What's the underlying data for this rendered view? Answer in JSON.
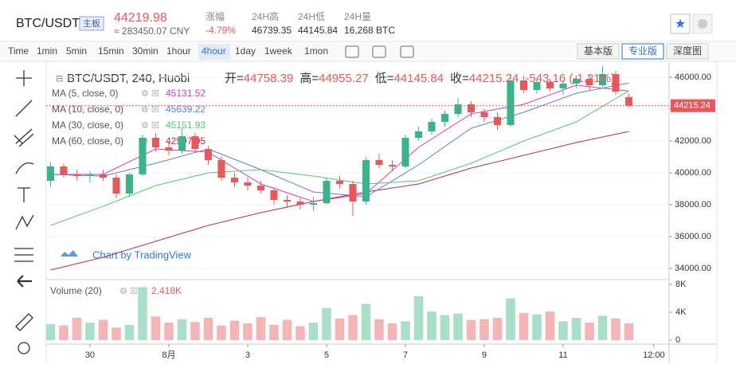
{
  "header": {
    "symbol": "BTC/USDT",
    "badge": "主板",
    "price": "44219.98",
    "cny": "≈ 283450.07 CNY",
    "stats": [
      {
        "label": "涨幅",
        "value": "-4.79%"
      },
      {
        "label": "24H高",
        "value": "46739.35"
      },
      {
        "label": "24H低",
        "value": "44145.84"
      },
      {
        "label": "24H量",
        "value": "16,268 BTC"
      }
    ]
  },
  "toolbar": {
    "intervals": [
      "Time",
      "1min",
      "5min",
      "15min",
      "30min",
      "1hour",
      "4hour",
      "1day",
      "1week",
      "1mon"
    ],
    "views": [
      "基本版",
      "专业版",
      "深度图"
    ]
  },
  "chart_data": [
    {
      "type": "candlestick",
      "title": "BTC/USDT, 240, Huobi",
      "ohlc_labels": [
        "开=",
        "高=",
        "低=",
        "收="
      ],
      "change": "-543.16 (-1.21%)",
      "watermark": "Chart by TradingView",
      "up_color": "#3bb38a",
      "down_color": "#e8575a",
      "candles": [
        [
          39500,
          40700,
          39100,
          40400
        ],
        [
          40400,
          40600,
          39700,
          39900
        ],
        [
          39900,
          40200,
          39500,
          39800
        ],
        [
          39800,
          40100,
          39400,
          39900
        ],
        [
          39900,
          40200,
          39500,
          39700
        ],
        [
          39700,
          39900,
          38400,
          38700
        ],
        [
          38700,
          40000,
          38500,
          39900
        ],
        [
          39900,
          42400,
          39800,
          42200
        ],
        [
          42200,
          42500,
          41300,
          41600
        ],
        [
          41600,
          41900,
          41100,
          41400
        ],
        [
          41400,
          42800,
          41200,
          42300
        ],
        [
          42300,
          42500,
          41300,
          41500
        ],
        [
          41500,
          41700,
          40500,
          40800
        ],
        [
          40800,
          41000,
          39500,
          39700
        ],
        [
          39700,
          40000,
          39100,
          39400
        ],
        [
          39400,
          39700,
          38900,
          39200
        ],
        [
          39200,
          39500,
          38700,
          38900
        ],
        [
          38900,
          39100,
          38000,
          38300
        ],
        [
          38300,
          38600,
          37800,
          38200
        ],
        [
          38200,
          38400,
          37700,
          38000
        ],
        [
          38000,
          38500,
          37600,
          38100
        ],
        [
          38100,
          39700,
          38000,
          39500
        ],
        [
          39500,
          39800,
          39000,
          39300
        ],
        [
          39300,
          39500,
          37300,
          38200
        ],
        [
          38200,
          41000,
          38000,
          40800
        ],
        [
          40800,
          41200,
          40300,
          40500
        ],
        [
          40500,
          40800,
          40100,
          40400
        ],
        [
          40400,
          42400,
          40300,
          42200
        ],
        [
          42200,
          42900,
          42000,
          42600
        ],
        [
          42600,
          43400,
          42400,
          43200
        ],
        [
          43200,
          43900,
          42900,
          43700
        ],
        [
          43700,
          44700,
          43500,
          44300
        ],
        [
          44300,
          44500,
          43500,
          43800
        ],
        [
          43800,
          44000,
          43200,
          43500
        ],
        [
          43500,
          43800,
          42700,
          43000
        ],
        [
          43000,
          46200,
          42900,
          45800
        ],
        [
          45800,
          46100,
          45000,
          45200
        ],
        [
          45200,
          45900,
          45000,
          45700
        ],
        [
          45700,
          45900,
          45100,
          45300
        ],
        [
          45300,
          45800,
          44900,
          45600
        ],
        [
          45600,
          46100,
          45300,
          45900
        ],
        [
          45900,
          46200,
          45200,
          45500
        ],
        [
          45500,
          46700,
          45400,
          46200
        ],
        [
          46200,
          46400,
          44900,
          45100
        ],
        [
          44758.39,
          44955.27,
          44145.84,
          44215.24
        ]
      ],
      "series": [
        {
          "name": "MA (5, close, 0)",
          "color": "#d63fb5",
          "x": [
            0,
            4,
            8,
            12,
            16,
            20,
            24,
            28,
            32,
            36,
            40,
            44
          ],
          "values": [
            39900,
            39900,
            41500,
            41300,
            39300,
            38200,
            38700,
            41600,
            43700,
            44300,
            45500,
            45131.52
          ]
        },
        {
          "name": "MA (10, close, 0)",
          "color": "#5b7fe0",
          "x": [
            0,
            4,
            8,
            12,
            16,
            20,
            24,
            28,
            32,
            36,
            40,
            44
          ],
          "values": [
            39900,
            39800,
            40600,
            41500,
            40200,
            38800,
            38500,
            40500,
            42800,
            43800,
            45000,
            45639.22
          ]
        },
        {
          "name": "MA (30, close, 0)",
          "color": "#52c57a",
          "x": [
            0,
            4,
            8,
            12,
            16,
            20,
            24,
            28,
            32,
            36,
            40,
            44
          ],
          "values": [
            36700,
            37900,
            39200,
            40000,
            40200,
            39800,
            39300,
            39500,
            40600,
            42000,
            43200,
            45151.93
          ]
        },
        {
          "name": "MA (60, close, 0)",
          "color": "#b5304a",
          "x": [
            0,
            4,
            8,
            12,
            16,
            20,
            24,
            28,
            32,
            36,
            40,
            44
          ],
          "values": [
            33900,
            34700,
            35700,
            36700,
            37500,
            38200,
            38800,
            39300,
            40300,
            41100,
            41900,
            42597.95
          ]
        }
      ],
      "xlim": [
        -0.33,
        47.06
      ],
      "ylim": [
        33300,
        46950
      ],
      "yticks": [
        {
          "value": 34000,
          "label": "34000.00"
        },
        {
          "value": 36000,
          "label": "36000.00"
        },
        {
          "value": 38000,
          "label": "38000.00"
        },
        {
          "value": 40000,
          "label": "40000.00"
        },
        {
          "value": 42000,
          "label": "42000.00"
        },
        {
          "value": 44000,
          "label": "44000.00"
        },
        {
          "value": 46000,
          "label": "46000.00"
        }
      ]
    },
    {
      "type": "bar",
      "title": "Volume (20)",
      "up_color": "#a9dfc9",
      "down_color": "#f4b5b5",
      "values": [
        2300,
        2100,
        3200,
        2500,
        2900,
        1800,
        2200,
        7600,
        3400,
        2500,
        3000,
        2600,
        3200,
        2100,
        2800,
        2400,
        3300,
        2200,
        2900,
        2000,
        2500,
        4600,
        3100,
        3600,
        5200,
        3000,
        2400,
        2700,
        6300,
        4100,
        3600,
        3800,
        2900,
        3000,
        3200,
        6000,
        3900,
        3700,
        4100,
        2700,
        3200,
        2500,
        3500,
        3100,
        2418
      ],
      "value_labels": [
        null,
        null,
        null,
        null,
        null,
        null,
        null,
        null,
        null,
        null,
        null,
        null,
        null,
        null,
        null,
        null,
        null,
        null,
        null,
        null,
        null,
        null,
        null,
        null,
        null,
        null,
        null,
        null,
        null,
        null,
        null,
        null,
        null,
        null,
        null,
        null,
        null,
        null,
        null,
        null,
        null,
        null,
        null,
        null,
        "2.418K"
      ],
      "xlim": [
        -0.33,
        47.06
      ],
      "ylim": [
        0,
        8000
      ],
      "yticks": [
        0,
        {
          "value": 4000,
          "label": "4K"
        },
        {
          "value": 8000,
          "label": "8K"
        }
      ],
      "xticks": [
        {
          "value": 3,
          "label": "30"
        },
        {
          "value": 9,
          "label": "8月"
        },
        {
          "value": 15,
          "label": "3"
        },
        {
          "value": 21,
          "label": "5"
        },
        {
          "value": 27,
          "label": "7"
        },
        {
          "value": 33,
          "label": "9"
        },
        {
          "value": 39,
          "label": "11"
        },
        {
          "value": 45.9,
          "label": "12:00"
        }
      ]
    }
  ]
}
